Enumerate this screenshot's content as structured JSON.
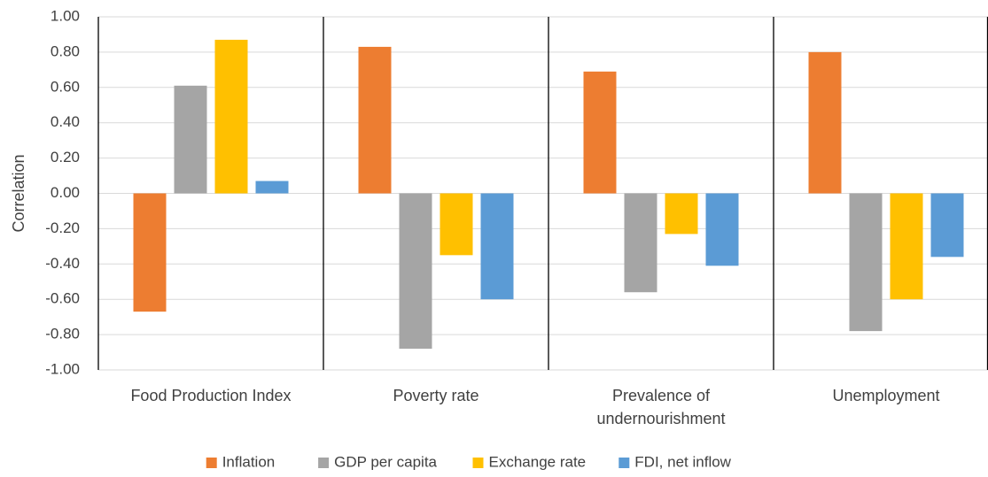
{
  "chart_data": {
    "type": "bar",
    "categories": [
      "Food Production Index",
      "Poverty rate",
      "Prevalence of undernourishment",
      "Unemployment"
    ],
    "series": [
      {
        "name": "Inflation",
        "color": "#ed7d31",
        "values": [
          -0.67,
          0.83,
          0.69,
          0.8
        ]
      },
      {
        "name": "GDP per capita",
        "color": "#a5a5a5",
        "values": [
          0.61,
          -0.88,
          -0.56,
          -0.78
        ]
      },
      {
        "name": "Exchange rate",
        "color": "#ffc000",
        "values": [
          0.87,
          -0.35,
          -0.23,
          -0.6
        ]
      },
      {
        "name": "FDI, net inflow",
        "color": "#5b9bd5",
        "values": [
          0.07,
          -0.6,
          -0.41,
          -0.36
        ]
      }
    ],
    "ylabel": "Correlation",
    "ylim": [
      -1,
      1
    ],
    "yticks": [
      {
        "value": -1,
        "label": "-1.00"
      },
      {
        "value": -0.8,
        "label": "-0.80"
      },
      {
        "value": -0.6,
        "label": "-0.60"
      },
      {
        "value": -0.4,
        "label": "-0.40"
      },
      {
        "value": -0.2,
        "label": "-0.20"
      },
      {
        "value": 0,
        "label": "0.00"
      },
      {
        "value": 0.2,
        "label": "0.20"
      },
      {
        "value": 0.4,
        "label": "0.40"
      },
      {
        "value": 0.6,
        "label": "0.60"
      },
      {
        "value": 0.8,
        "label": "0.80"
      },
      {
        "value": 1,
        "label": "1.00"
      }
    ],
    "grid": true,
    "legend": "bottom"
  }
}
